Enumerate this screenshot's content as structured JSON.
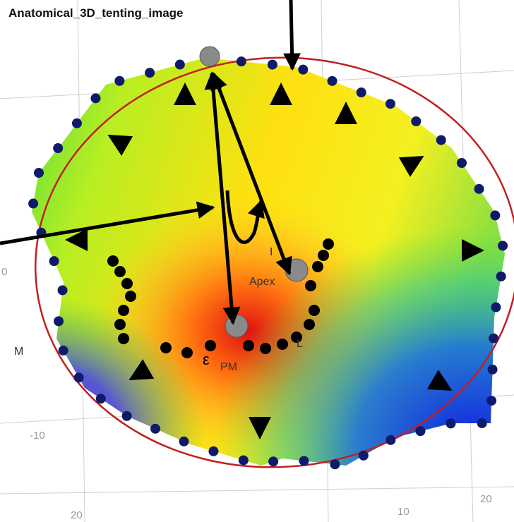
{
  "title": "Anatomical_3D_tenting_image",
  "labels": {
    "apex": "Apex",
    "pm": "PM",
    "l": "L",
    "i": "I",
    "m": "M",
    "epsilon": "ε"
  },
  "axis_labels": {
    "left_minus_ten": "-10",
    "right_twenty": "20",
    "bottom_ten": "10",
    "bottom_left_twenty": "20",
    "left_zero": "0"
  }
}
